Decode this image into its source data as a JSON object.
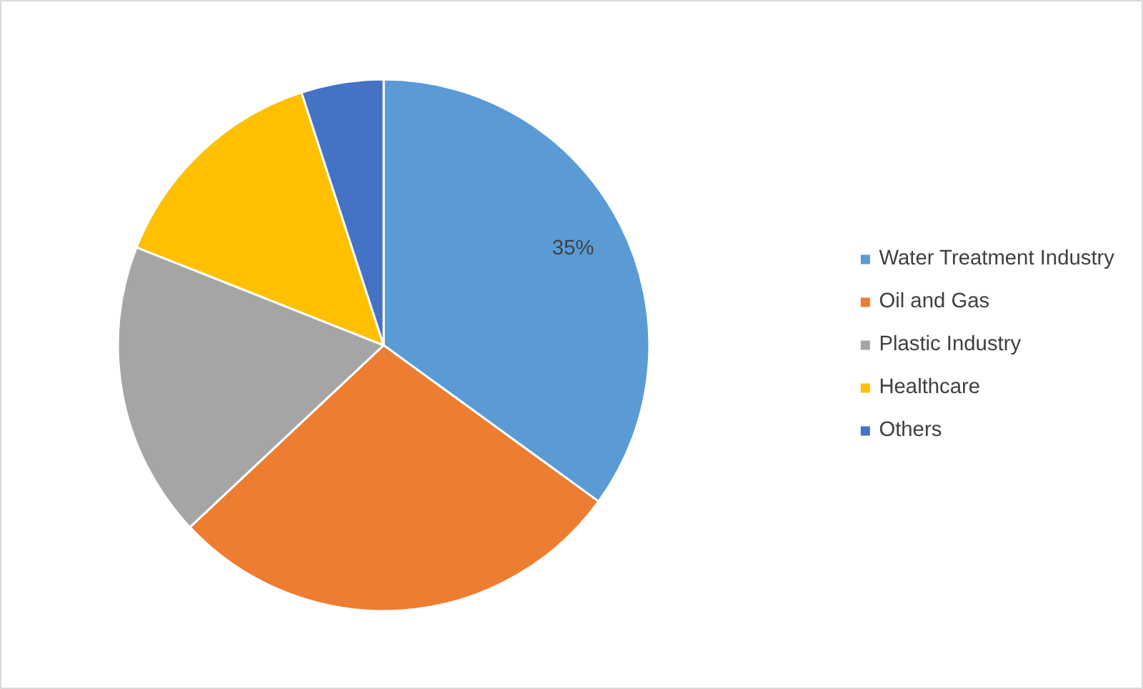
{
  "chart_data": {
    "type": "pie",
    "categories": [
      "Water Treatment Industry",
      "Oil and Gas",
      "Plastic Industry",
      "Healthcare",
      "Others"
    ],
    "values": [
      35,
      28,
      18,
      14,
      5
    ],
    "colors": [
      "#5b9bd5",
      "#ed7d31",
      "#a5a5a5",
      "#ffc000",
      "#4472c4"
    ],
    "value_labels": [
      "35%",
      null,
      null,
      null,
      null
    ],
    "legend": "right"
  }
}
